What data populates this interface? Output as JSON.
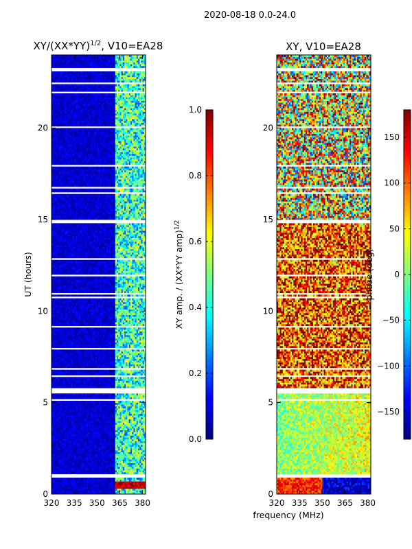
{
  "suptitle": "2020-08-18 0.0-24.0",
  "colors": {
    "jet": [
      "#00007f",
      "#0000ff",
      "#007fff",
      "#00ffff",
      "#7fff7f",
      "#ffff00",
      "#ff7f00",
      "#ff0000",
      "#7f0000"
    ]
  },
  "chart_data": [
    {
      "type": "heatmap",
      "panel": "left",
      "title": "XY/(XX*YY)",
      "title_exponent": "1/2",
      "title_suffix": ", V10=EA28",
      "xlabel": "",
      "ylabel": "UT (hours)",
      "xlim": [
        320,
        382
      ],
      "ylim": [
        0,
        24
      ],
      "xticks": [
        320,
        335,
        350,
        365,
        380
      ],
      "yticks": [
        0,
        5,
        10,
        15,
        20
      ],
      "value_description": "normalized XY amplitude; mostly ~0 below 360 MHz, ~0.2-0.6 from 360-382 MHz, near 1.0 at 0.3-0.7 h",
      "colorbar": {
        "label": "XY amp. / (XX*YY amp)",
        "label_exponent": "1/2",
        "range": [
          0.0,
          1.0
        ],
        "ticks": [
          "0.0",
          "0.2",
          "0.4",
          "0.6",
          "0.8",
          "1.0"
        ]
      }
    },
    {
      "type": "heatmap",
      "panel": "right",
      "title": "XY, V10=EA28",
      "xlabel": "frequency (MHz)",
      "ylabel": "",
      "xlim": [
        320,
        382
      ],
      "ylim": [
        0,
        24
      ],
      "xticks": [
        320,
        335,
        350,
        365,
        380
      ],
      "yticks": [
        0,
        5,
        10,
        15,
        20
      ],
      "value_description": "XY phase (deg); ~0-50 deg for 1-5.8 h, mixed/noisy ~50-180 deg for 6-15 h, noisy for 15-24 h",
      "colorbar": {
        "label": "phase (deg)",
        "range": [
          -180,
          180
        ],
        "ticks": [
          "−150",
          "−100",
          "−50",
          "0",
          "50",
          "100",
          "150"
        ]
      }
    }
  ]
}
